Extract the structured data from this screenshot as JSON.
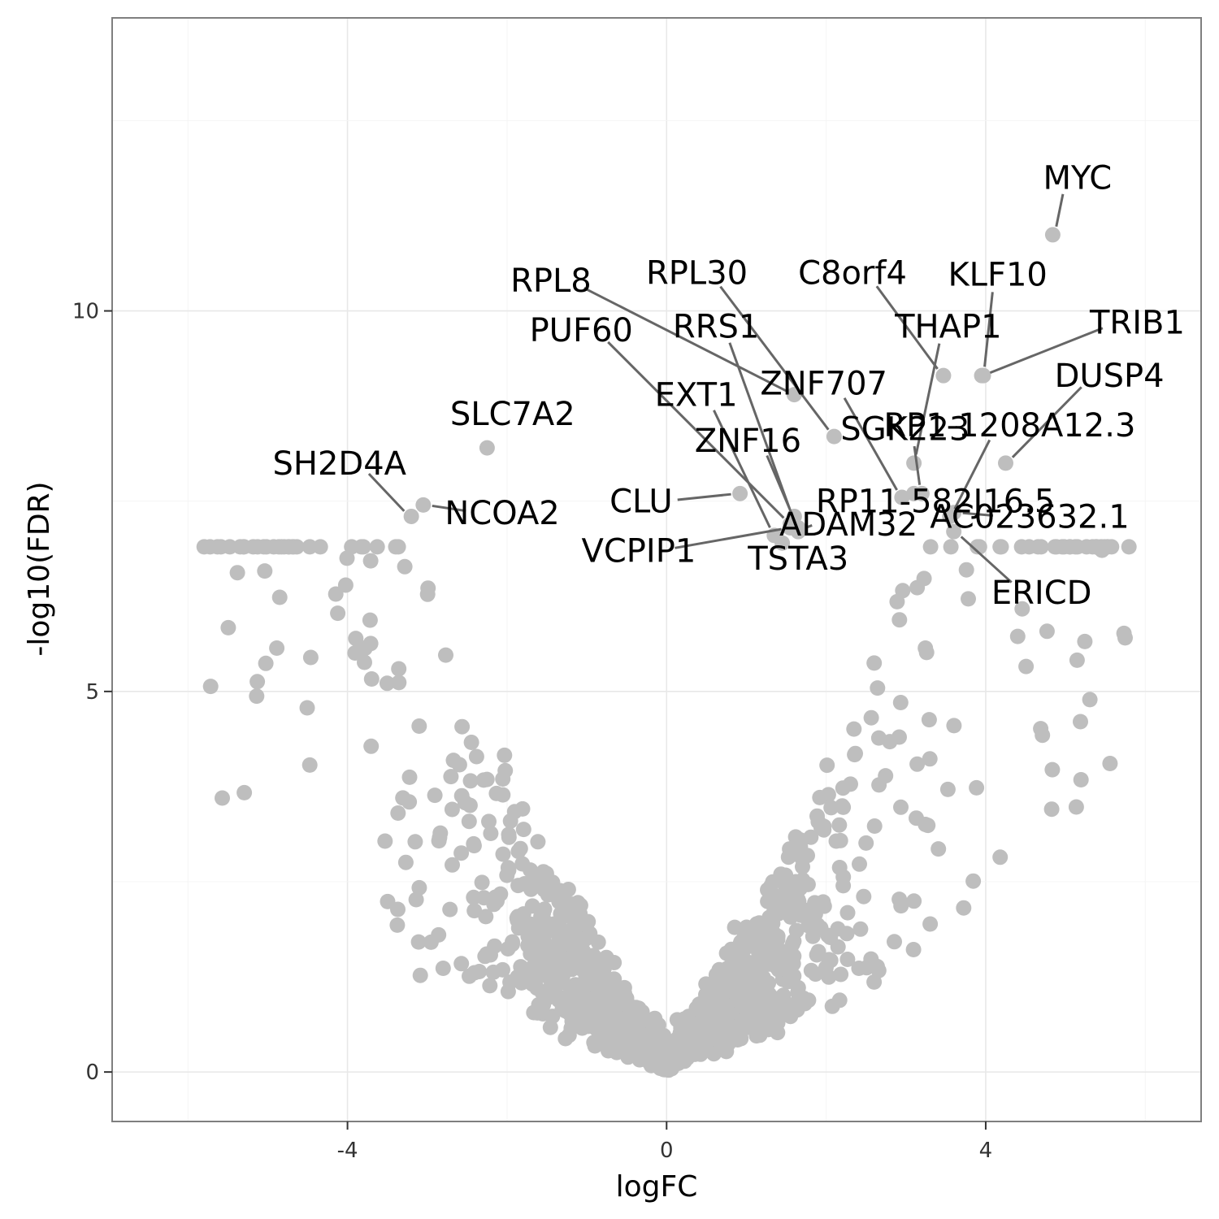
{
  "chart_data": {
    "type": "scatter",
    "title": "",
    "xlabel": "logFC",
    "ylabel": "-log10(FDR)",
    "xlim": [
      -6.95,
      6.7
    ],
    "ylim": [
      -0.65,
      13.85
    ],
    "x_ticks": [
      -4,
      0,
      4
    ],
    "y_ticks": [
      0,
      5,
      10
    ],
    "x_tick_labels": [
      "-4",
      "0",
      "4"
    ],
    "y_tick_labels": [
      "0",
      "5",
      "10"
    ],
    "grid": true,
    "point_color": "#bebebe",
    "leader_color": "#666666",
    "labeled_points": [
      {
        "name": "MYC",
        "x": 4.84,
        "y": 11.0,
        "label_x": 5.15,
        "label_y": 11.75
      },
      {
        "name": "KLF10",
        "x": 3.97,
        "y": 9.15,
        "label_x": 4.15,
        "label_y": 10.48
      },
      {
        "name": "C8orf4",
        "x": 3.47,
        "y": 9.15,
        "label_x": 2.33,
        "label_y": 10.5
      },
      {
        "name": "RPL30",
        "x": 2.1,
        "y": 8.35,
        "label_x": 0.38,
        "label_y": 10.5
      },
      {
        "name": "RPL8",
        "x": 1.6,
        "y": 8.9,
        "label_x": -1.45,
        "label_y": 10.4
      },
      {
        "name": "TRIB1",
        "x": 3.95,
        "y": 9.15,
        "label_x": 5.9,
        "label_y": 9.85
      },
      {
        "name": "THAP1",
        "x": 3.1,
        "y": 8.0,
        "label_x": 3.53,
        "label_y": 9.8
      },
      {
        "name": "RRS1",
        "x": 1.65,
        "y": 7.1,
        "label_x": 0.62,
        "label_y": 9.8
      },
      {
        "name": "PUF60",
        "x": 1.55,
        "y": 7.2,
        "label_x": -1.07,
        "label_y": 9.75
      },
      {
        "name": "DUSP4",
        "x": 4.25,
        "y": 8.0,
        "label_x": 5.55,
        "label_y": 9.15
      },
      {
        "name": "ZNF707",
        "x": 2.95,
        "y": 7.55,
        "label_x": 1.97,
        "label_y": 9.05
      },
      {
        "name": "EXT1",
        "x": 1.35,
        "y": 7.05,
        "label_x": 0.37,
        "label_y": 8.9
      },
      {
        "name": "SLC7A2",
        "x": -2.25,
        "y": 8.2,
        "label_x": -1.93,
        "label_y": 8.65
      },
      {
        "name": "SGK223",
        "x": 3.2,
        "y": 7.6,
        "label_x": 2.99,
        "label_y": 8.45
      },
      {
        "name": "RP1-1208A12.3",
        "x": 3.55,
        "y": 7.3,
        "label_x": 4.3,
        "label_y": 8.5
      },
      {
        "name": "ZNF16",
        "x": 1.6,
        "y": 7.3,
        "label_x": 1.02,
        "label_y": 8.3
      },
      {
        "name": "SH2D4A",
        "x": -3.2,
        "y": 7.3,
        "label_x": -4.1,
        "label_y": 8.0
      },
      {
        "name": "RP11-582J16.5",
        "x": 3.1,
        "y": 7.6,
        "label_x": 3.37,
        "label_y": 7.5
      },
      {
        "name": "CLU",
        "x": 0.92,
        "y": 7.6,
        "label_x": -0.32,
        "label_y": 7.5
      },
      {
        "name": "NCOA2",
        "x": -3.05,
        "y": 7.45,
        "label_x": -2.06,
        "label_y": 7.35
      },
      {
        "name": "AC023632.1",
        "x": 3.6,
        "y": 7.35,
        "label_x": 4.55,
        "label_y": 7.3
      },
      {
        "name": "ADAM32",
        "x": 1.65,
        "y": 7.15,
        "label_x": 2.28,
        "label_y": 7.2
      },
      {
        "name": "VCPIP1",
        "x": 1.55,
        "y": 7.15,
        "label_x": -0.35,
        "label_y": 6.85
      },
      {
        "name": "TSTA3",
        "x": 1.45,
        "y": 6.95,
        "label_x": 1.65,
        "label_y": 6.75
      },
      {
        "name": "ERICD",
        "x": 3.6,
        "y": 7.1,
        "label_x": 4.7,
        "label_y": 6.3
      }
    ],
    "background_points_count": 1350
  }
}
